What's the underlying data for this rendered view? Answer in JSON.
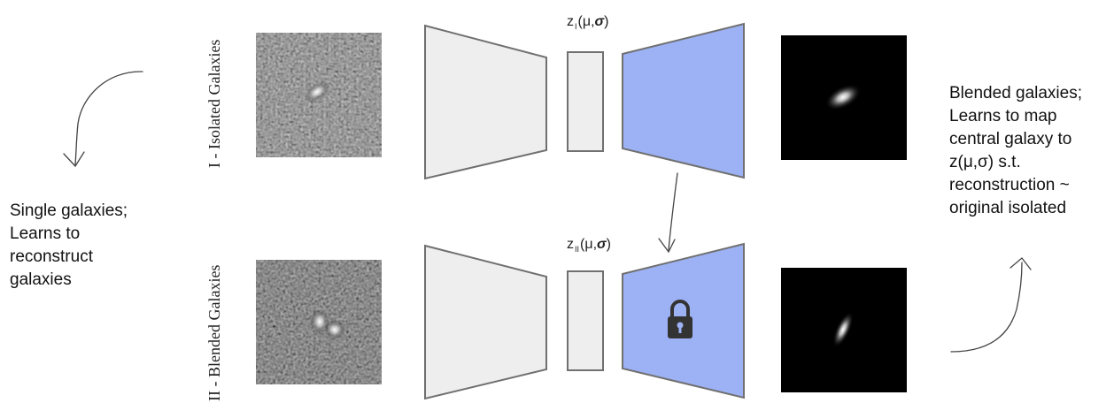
{
  "left_note": "Single galaxies;\nLearns to\nreconstruct\ngalaxies",
  "right_note": "Blended galaxies;\nLearns to map\ncentral galaxy to\nz(μ,σ)  s.t.\nreconstruction ~\noriginal isolated",
  "stage1": {
    "label": "I - Isolated Galaxies",
    "latent": {
      "prefix": "z",
      "sub": "I",
      "open": "(μ,",
      "sigma": "σ",
      "close": ")"
    }
  },
  "stage2": {
    "label": "II - Blended Galaxies",
    "latent": {
      "prefix": "z",
      "sub": "II",
      "open": "(μ,",
      "sigma": "σ",
      "close": ")"
    }
  },
  "colors": {
    "encoder_fill": "#eeeeee",
    "encoder_stroke": "#707070",
    "decoder_fill": "#9db2f5",
    "arrow": "#444444",
    "image_bg": "#000000"
  },
  "icons": [
    "lock-icon"
  ]
}
